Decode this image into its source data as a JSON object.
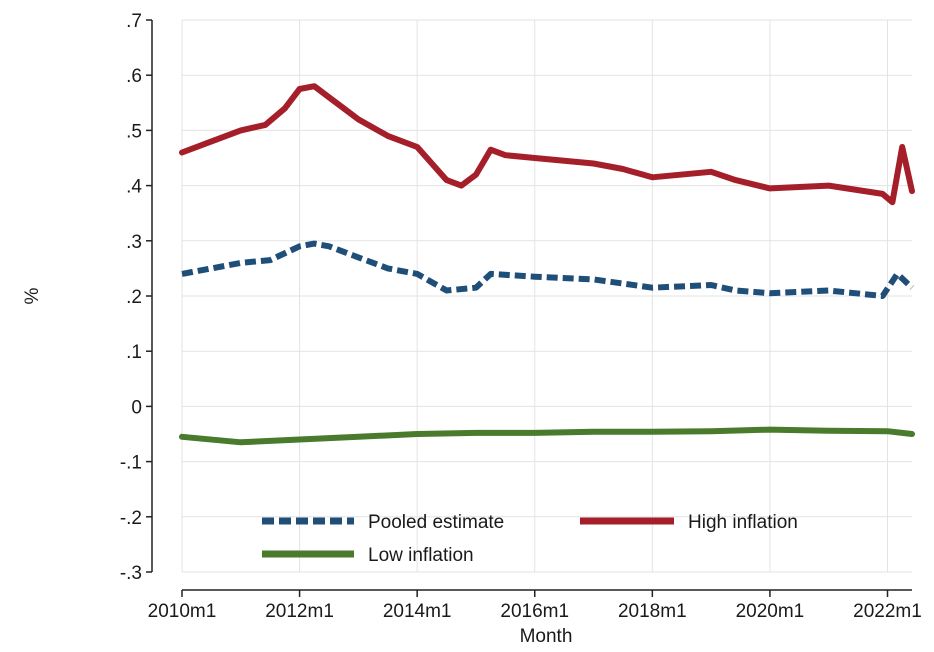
{
  "chart_data": {
    "type": "line",
    "title": "",
    "xlabel": "Month",
    "ylabel": "%",
    "xlim": [
      "2010m1",
      "2022m6"
    ],
    "ylim": [
      -0.3,
      0.7
    ],
    "grid": true,
    "legend_position": "bottom-inside",
    "x_ticks": [
      "2010m1",
      "2012m1",
      "2014m1",
      "2016m1",
      "2018m1",
      "2020m1",
      "2022m1"
    ],
    "y_ticks": [
      ".7",
      ".6",
      ".5",
      ".4",
      ".3",
      ".2",
      ".1",
      "0",
      "-.1",
      "-.2",
      "-.3"
    ],
    "series": [
      {
        "name": "Pooled estimate",
        "color": "#1f4e79",
        "style": "dashed",
        "points": [
          [
            "2010m1",
            0.24
          ],
          [
            "2010m7",
            0.25
          ],
          [
            "2011m1",
            0.26
          ],
          [
            "2011m7",
            0.265
          ],
          [
            "2012m1",
            0.29
          ],
          [
            "2012m4",
            0.295
          ],
          [
            "2012m7",
            0.29
          ],
          [
            "2013m1",
            0.27
          ],
          [
            "2013m7",
            0.25
          ],
          [
            "2014m1",
            0.24
          ],
          [
            "2014m7",
            0.21
          ],
          [
            "2015m1",
            0.215
          ],
          [
            "2015m4",
            0.24
          ],
          [
            "2016m1",
            0.235
          ],
          [
            "2017m1",
            0.23
          ],
          [
            "2018m1",
            0.215
          ],
          [
            "2019m1",
            0.22
          ],
          [
            "2019m6",
            0.21
          ],
          [
            "2020m1",
            0.205
          ],
          [
            "2021m1",
            0.21
          ],
          [
            "2021m12",
            0.2
          ],
          [
            "2022m3",
            0.24
          ],
          [
            "2022m6",
            0.215
          ]
        ]
      },
      {
        "name": "High inflation",
        "color": "#a51f2a",
        "style": "solid",
        "points": [
          [
            "2010m1",
            0.46
          ],
          [
            "2010m7",
            0.48
          ],
          [
            "2011m1",
            0.5
          ],
          [
            "2011m6",
            0.51
          ],
          [
            "2011m10",
            0.54
          ],
          [
            "2012m1",
            0.575
          ],
          [
            "2012m4",
            0.58
          ],
          [
            "2012m7",
            0.56
          ],
          [
            "2012m10",
            0.54
          ],
          [
            "2013m1",
            0.52
          ],
          [
            "2013m7",
            0.49
          ],
          [
            "2014m1",
            0.47
          ],
          [
            "2014m7",
            0.41
          ],
          [
            "2014m10",
            0.4
          ],
          [
            "2015m1",
            0.42
          ],
          [
            "2015m4",
            0.465
          ],
          [
            "2015m7",
            0.455
          ],
          [
            "2016m1",
            0.45
          ],
          [
            "2017m1",
            0.44
          ],
          [
            "2017m7",
            0.43
          ],
          [
            "2018m1",
            0.415
          ],
          [
            "2019m1",
            0.425
          ],
          [
            "2019m6",
            0.41
          ],
          [
            "2020m1",
            0.395
          ],
          [
            "2021m1",
            0.4
          ],
          [
            "2021m12",
            0.385
          ],
          [
            "2022m2",
            0.37
          ],
          [
            "2022m4",
            0.47
          ],
          [
            "2022m6",
            0.39
          ]
        ]
      },
      {
        "name": "Low inflation",
        "color": "#4a7a2c",
        "style": "solid",
        "points": [
          [
            "2010m1",
            -0.055
          ],
          [
            "2011m1",
            -0.065
          ],
          [
            "2012m1",
            -0.06
          ],
          [
            "2013m1",
            -0.055
          ],
          [
            "2014m1",
            -0.05
          ],
          [
            "2015m1",
            -0.048
          ],
          [
            "2016m1",
            -0.048
          ],
          [
            "2017m1",
            -0.046
          ],
          [
            "2018m1",
            -0.046
          ],
          [
            "2019m1",
            -0.045
          ],
          [
            "2020m1",
            -0.042
          ],
          [
            "2021m1",
            -0.044
          ],
          [
            "2022m1",
            -0.045
          ],
          [
            "2022m6",
            -0.05
          ]
        ]
      }
    ]
  }
}
